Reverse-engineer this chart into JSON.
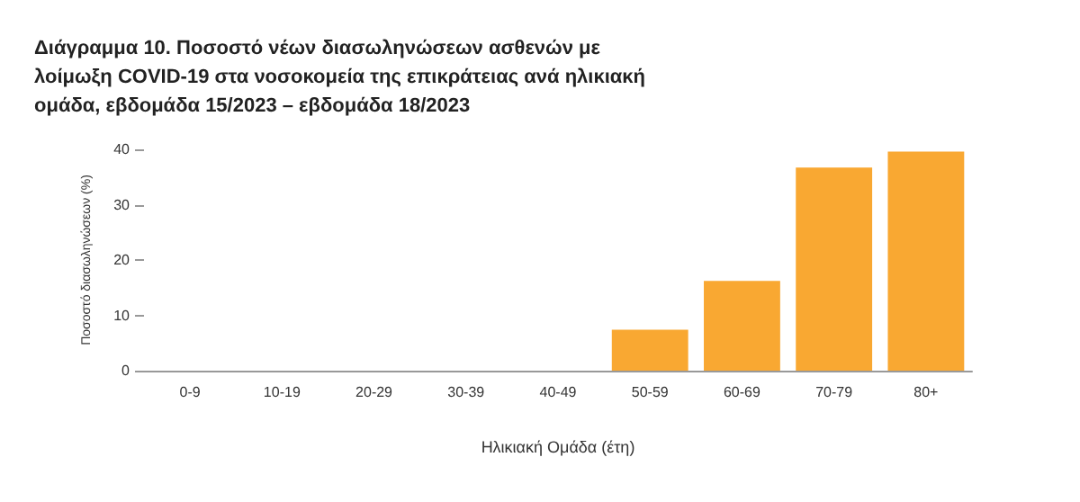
{
  "chart_data": {
    "type": "bar",
    "title": "Διάγραμμα 10. Ποσοστό νέων διασωληνώσεων ασθενών με λοίμωξη COVID-19 στα νοσοκομεία της επικράτειας ανά ηλικιακή ομάδα, εβδομάδα 15/2023 – εβδομάδα 18/2023",
    "categories": [
      "0-9",
      "10-19",
      "20-29",
      "30-39",
      "40-49",
      "50-59",
      "60-69",
      "70-79",
      "80+"
    ],
    "values": [
      0,
      0,
      0,
      0,
      0,
      7.4,
      16.2,
      36.7,
      39.6
    ],
    "color": "#f9a832",
    "xlabel": "Ηλικιακή Ομάδα (έτη)",
    "ylabel": "Ποσοστό διασωληνώσεων (%)",
    "ylim": [
      0,
      40
    ],
    "yticks": [
      0,
      10,
      20,
      30,
      40
    ],
    "grid": false
  }
}
